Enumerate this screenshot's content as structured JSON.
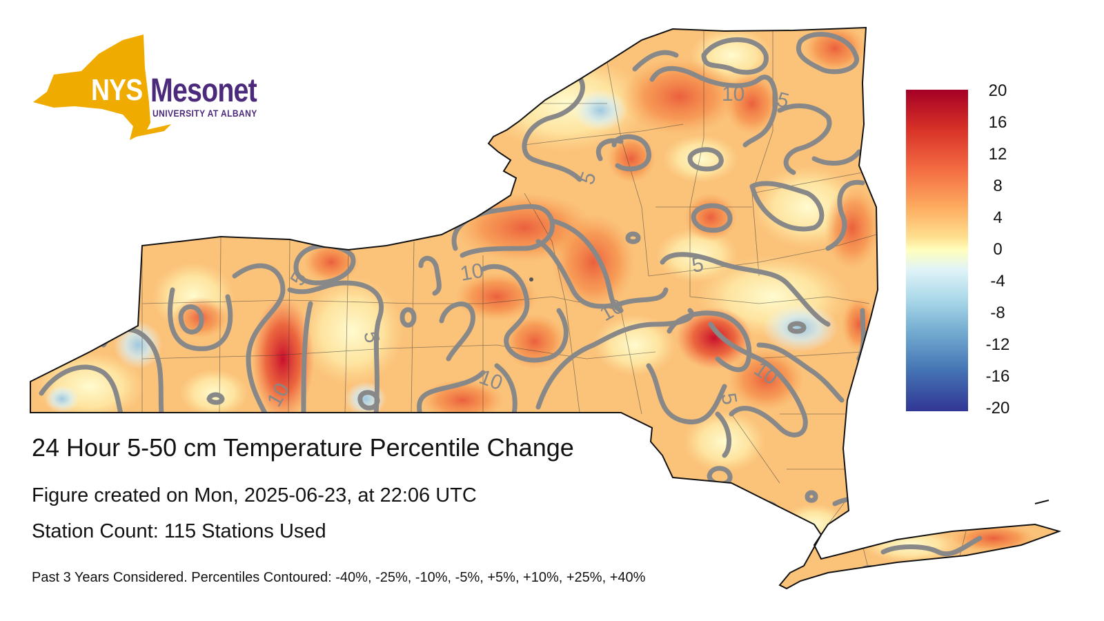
{
  "logo": {
    "nys": "NYS",
    "mesonet": "Mesonet",
    "university": "UNIVERSITY AT ALBANY"
  },
  "title": "24 Hour 5-50 cm Temperature Percentile Change",
  "created": "Figure created on Mon, 2025-06-23, at 22:06 UTC",
  "stations": "Station Count: 115 Stations Used",
  "footnote": "Past 3 Years Considered. Percentiles Contoured: -40%, -25%, -10%, -5%, +5%, +10%, +25%, +40%",
  "colorbar": {
    "ticks": [
      "20",
      "16",
      "12",
      "8",
      "4",
      "0",
      "-4",
      "-8",
      "-12",
      "-16",
      "-20"
    ],
    "colors": [
      "#a50026",
      "#d73027",
      "#f46d43",
      "#fdae61",
      "#fee090",
      "#ffffbf",
      "#e0f3f8",
      "#abd9e9",
      "#74add1",
      "#4575b4",
      "#313695"
    ]
  },
  "contour_labels": [
    "10",
    "5",
    "5",
    "5",
    "10",
    "10",
    "5",
    "10",
    "5",
    "10",
    "10",
    "10",
    "5",
    "5"
  ],
  "colors": {
    "contour": "#888888",
    "border": "#111111",
    "logo_gold": "#f0ab00",
    "logo_purple": "#4b2a7b"
  }
}
